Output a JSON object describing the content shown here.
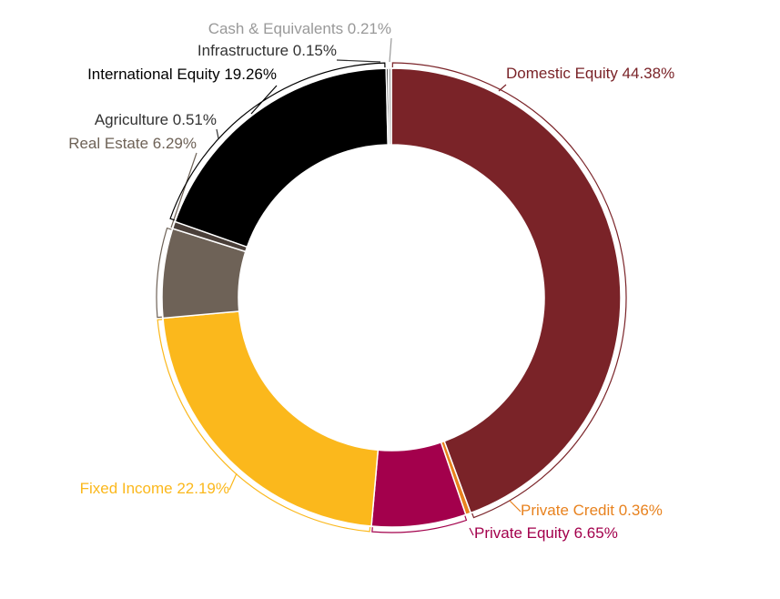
{
  "chart_data": {
    "type": "pie",
    "title": "",
    "donut": true,
    "slices": [
      {
        "label": "Domestic Equity 44.38%",
        "value": 44.38,
        "color": "#7a2328"
      },
      {
        "label": "Private Credit 0.36%",
        "value": 0.36,
        "color": "#e8821e"
      },
      {
        "label": "Private Equity 6.65%",
        "value": 6.65,
        "color": "#a3004c"
      },
      {
        "label": "Fixed Income 22.19%",
        "value": 22.19,
        "color": "#fbb81c"
      },
      {
        "label": "Real Estate 6.29%",
        "value": 6.29,
        "color": "#6e6257"
      },
      {
        "label": "Agriculture 0.51%",
        "value": 0.51,
        "color": "#4a3f39"
      },
      {
        "label": "International Equity 19.26%",
        "value": 19.26,
        "color": "#000000"
      },
      {
        "label": "Infrastructure 0.15%",
        "value": 0.15,
        "color": "#333333"
      },
      {
        "label": "Cash & Equivalents 0.21%",
        "value": 0.21,
        "color": "#b0b0b0"
      }
    ],
    "label_colors": [
      "#7a2328",
      "#e8821e",
      "#a3004c",
      "#fbb81c",
      "#6e6257",
      "#333333",
      "#000000",
      "#333333",
      "#999999"
    ]
  }
}
